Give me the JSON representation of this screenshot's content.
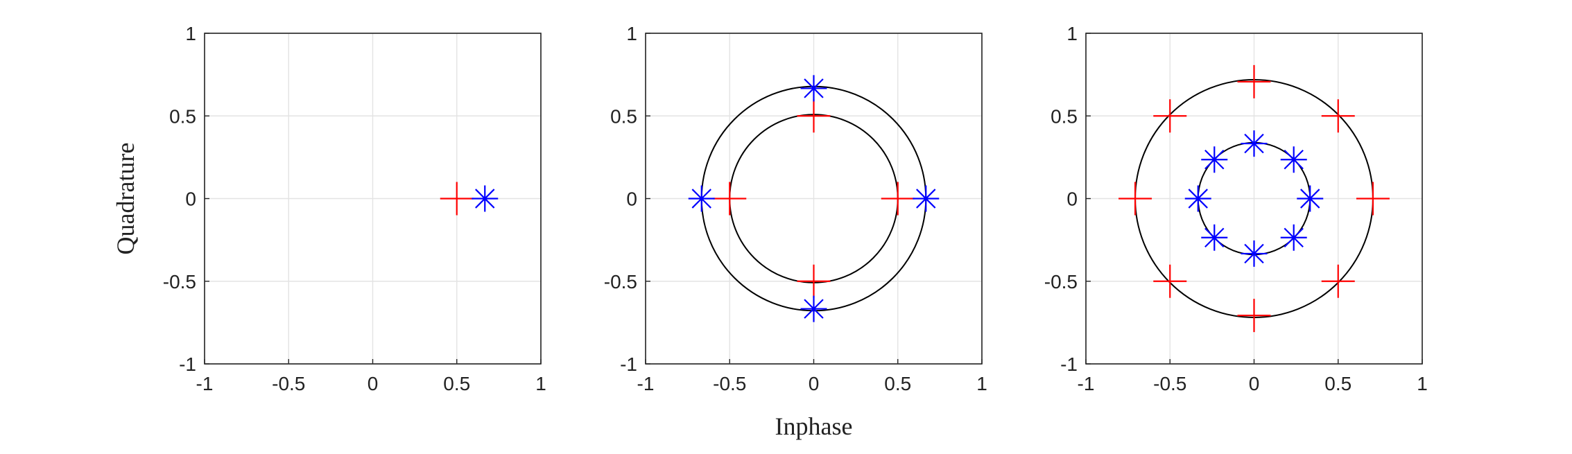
{
  "chart_data": [
    {
      "type": "scatter",
      "ylabel": "Quadrature",
      "xlim": [
        -1,
        1
      ],
      "ylim": [
        -1,
        1
      ],
      "xticks": [
        -1,
        -0.5,
        0,
        0.5,
        1
      ],
      "yticks": [
        -1,
        -0.5,
        0,
        0.5,
        1
      ],
      "grid": true,
      "circles": [],
      "series": [
        {
          "color": "#ff0000",
          "marker": "+",
          "x": [
            0.5
          ],
          "y": [
            0
          ]
        },
        {
          "color": "#0000ff",
          "marker": "*",
          "x": [
            0.667
          ],
          "y": [
            0
          ]
        }
      ]
    },
    {
      "type": "scatter",
      "xlabel": "Inphase",
      "xlim": [
        -1,
        1
      ],
      "ylim": [
        -1,
        1
      ],
      "xticks": [
        -1,
        -0.5,
        0,
        0.5,
        1
      ],
      "yticks": [
        -1,
        -0.5,
        0,
        0.5,
        1
      ],
      "grid": true,
      "circles": [
        0.5,
        0.667
      ],
      "series": [
        {
          "color": "#ff0000",
          "marker": "+",
          "x": [
            0.5,
            0,
            -0.5,
            0
          ],
          "y": [
            0,
            0.5,
            0,
            -0.5
          ]
        },
        {
          "color": "#0000ff",
          "marker": "*",
          "x": [
            0.667,
            0,
            -0.667,
            0
          ],
          "y": [
            0,
            0.667,
            0,
            -0.667
          ]
        }
      ]
    },
    {
      "type": "scatter",
      "xlim": [
        -1,
        1
      ],
      "ylim": [
        -1,
        1
      ],
      "xticks": [
        -1,
        -0.5,
        0,
        0.5,
        1
      ],
      "yticks": [
        -1,
        -0.5,
        0,
        0.5,
        1
      ],
      "grid": true,
      "circles": [
        0.707,
        0.333
      ],
      "series": [
        {
          "color": "#ff0000",
          "marker": "+",
          "x": [
            0.707,
            0.5,
            0,
            -0.5,
            -0.707,
            -0.5,
            0,
            0.5
          ],
          "y": [
            0,
            0.5,
            0.707,
            0.5,
            0,
            -0.5,
            -0.707,
            -0.5
          ]
        },
        {
          "color": "#0000ff",
          "marker": "*",
          "x": [
            0.333,
            0.236,
            0,
            -0.236,
            -0.333,
            -0.236,
            0,
            0.236
          ],
          "y": [
            0,
            0.236,
            0.333,
            0.236,
            0,
            -0.236,
            -0.333,
            -0.236
          ]
        }
      ]
    }
  ]
}
